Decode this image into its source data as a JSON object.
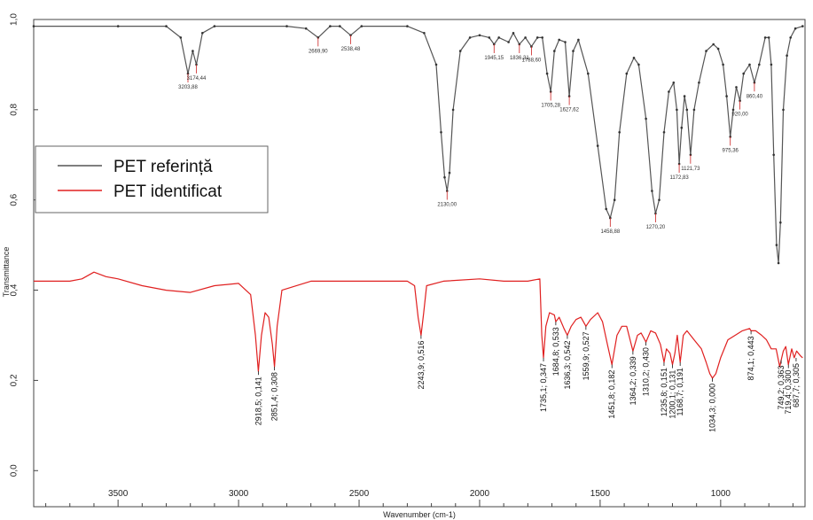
{
  "chart_data": {
    "type": "line",
    "xlabel": "Wavenumber (cm-1)",
    "ylabel": "Transmittance",
    "xlim": [
      3850,
      650
    ],
    "ylim": [
      -0.08,
      1.0
    ],
    "x_ticks": [
      3500,
      3000,
      2500,
      2000,
      1500,
      1000
    ],
    "y_ticks": [
      "0,0",
      "0,2",
      "0,4",
      "0,6",
      "0,8",
      "1,0"
    ],
    "y_tick_values": [
      0.0,
      0.2,
      0.4,
      0.6,
      0.8,
      1.0
    ],
    "legend": {
      "position": "left",
      "entries": [
        "PET referință",
        "PET identificat"
      ]
    },
    "series": [
      {
        "name": "PET referință",
        "color": "#555555",
        "points": [
          [
            3850,
            0.985
          ],
          [
            3500,
            0.985
          ],
          [
            3300,
            0.985
          ],
          [
            3240,
            0.96
          ],
          [
            3210,
            0.88
          ],
          [
            3190,
            0.93
          ],
          [
            3175,
            0.9
          ],
          [
            3150,
            0.97
          ],
          [
            3100,
            0.985
          ],
          [
            2800,
            0.985
          ],
          [
            2720,
            0.98
          ],
          [
            2670,
            0.96
          ],
          [
            2620,
            0.985
          ],
          [
            2580,
            0.985
          ],
          [
            2535,
            0.965
          ],
          [
            2490,
            0.985
          ],
          [
            2300,
            0.985
          ],
          [
            2230,
            0.97
          ],
          [
            2180,
            0.9
          ],
          [
            2160,
            0.75
          ],
          [
            2145,
            0.65
          ],
          [
            2135,
            0.62
          ],
          [
            2125,
            0.66
          ],
          [
            2110,
            0.8
          ],
          [
            2080,
            0.93
          ],
          [
            2040,
            0.96
          ],
          [
            2000,
            0.965
          ],
          [
            1960,
            0.96
          ],
          [
            1940,
            0.945
          ],
          [
            1920,
            0.96
          ],
          [
            1880,
            0.95
          ],
          [
            1860,
            0.97
          ],
          [
            1835,
            0.945
          ],
          [
            1810,
            0.96
          ],
          [
            1785,
            0.94
          ],
          [
            1760,
            0.96
          ],
          [
            1740,
            0.96
          ],
          [
            1720,
            0.88
          ],
          [
            1705,
            0.84
          ],
          [
            1690,
            0.93
          ],
          [
            1670,
            0.955
          ],
          [
            1645,
            0.95
          ],
          [
            1628,
            0.83
          ],
          [
            1612,
            0.93
          ],
          [
            1590,
            0.955
          ],
          [
            1550,
            0.88
          ],
          [
            1510,
            0.72
          ],
          [
            1475,
            0.58
          ],
          [
            1458,
            0.56
          ],
          [
            1440,
            0.6
          ],
          [
            1420,
            0.75
          ],
          [
            1390,
            0.88
          ],
          [
            1360,
            0.915
          ],
          [
            1340,
            0.9
          ],
          [
            1310,
            0.78
          ],
          [
            1285,
            0.62
          ],
          [
            1270,
            0.57
          ],
          [
            1255,
            0.6
          ],
          [
            1235,
            0.75
          ],
          [
            1215,
            0.84
          ],
          [
            1195,
            0.86
          ],
          [
            1182,
            0.8
          ],
          [
            1172,
            0.68
          ],
          [
            1162,
            0.76
          ],
          [
            1150,
            0.83
          ],
          [
            1140,
            0.8
          ],
          [
            1125,
            0.7
          ],
          [
            1110,
            0.8
          ],
          [
            1090,
            0.86
          ],
          [
            1060,
            0.93
          ],
          [
            1030,
            0.945
          ],
          [
            1010,
            0.935
          ],
          [
            990,
            0.9
          ],
          [
            975,
            0.83
          ],
          [
            960,
            0.74
          ],
          [
            948,
            0.8
          ],
          [
            935,
            0.85
          ],
          [
            920,
            0.82
          ],
          [
            905,
            0.88
          ],
          [
            880,
            0.9
          ],
          [
            860,
            0.86
          ],
          [
            840,
            0.9
          ],
          [
            815,
            0.96
          ],
          [
            800,
            0.96
          ],
          [
            790,
            0.9
          ],
          [
            780,
            0.7
          ],
          [
            768,
            0.5
          ],
          [
            760,
            0.46
          ],
          [
            752,
            0.55
          ],
          [
            740,
            0.8
          ],
          [
            725,
            0.92
          ],
          [
            710,
            0.96
          ],
          [
            690,
            0.98
          ],
          [
            660,
            0.985
          ]
        ]
      },
      {
        "name": "PET identificat",
        "color": "#e02020",
        "points": [
          [
            3850,
            0.42
          ],
          [
            3700,
            0.42
          ],
          [
            3650,
            0.425
          ],
          [
            3600,
            0.44
          ],
          [
            3550,
            0.43
          ],
          [
            3500,
            0.425
          ],
          [
            3400,
            0.41
          ],
          [
            3300,
            0.4
          ],
          [
            3200,
            0.395
          ],
          [
            3100,
            0.41
          ],
          [
            3000,
            0.415
          ],
          [
            2950,
            0.39
          ],
          [
            2930,
            0.3
          ],
          [
            2918,
            0.22
          ],
          [
            2905,
            0.3
          ],
          [
            2890,
            0.35
          ],
          [
            2875,
            0.34
          ],
          [
            2860,
            0.28
          ],
          [
            2851,
            0.23
          ],
          [
            2840,
            0.32
          ],
          [
            2820,
            0.4
          ],
          [
            2700,
            0.42
          ],
          [
            2500,
            0.42
          ],
          [
            2300,
            0.42
          ],
          [
            2270,
            0.41
          ],
          [
            2255,
            0.34
          ],
          [
            2243,
            0.3
          ],
          [
            2232,
            0.35
          ],
          [
            2220,
            0.41
          ],
          [
            2150,
            0.42
          ],
          [
            2000,
            0.425
          ],
          [
            1900,
            0.42
          ],
          [
            1800,
            0.42
          ],
          [
            1750,
            0.425
          ],
          [
            1742,
            0.3
          ],
          [
            1735,
            0.25
          ],
          [
            1725,
            0.32
          ],
          [
            1710,
            0.35
          ],
          [
            1690,
            0.345
          ],
          [
            1684,
            0.33
          ],
          [
            1670,
            0.34
          ],
          [
            1650,
            0.315
          ],
          [
            1636,
            0.3
          ],
          [
            1620,
            0.32
          ],
          [
            1600,
            0.335
          ],
          [
            1580,
            0.34
          ],
          [
            1559,
            0.32
          ],
          [
            1540,
            0.335
          ],
          [
            1510,
            0.35
          ],
          [
            1490,
            0.33
          ],
          [
            1470,
            0.28
          ],
          [
            1451,
            0.235
          ],
          [
            1430,
            0.3
          ],
          [
            1410,
            0.32
          ],
          [
            1390,
            0.32
          ],
          [
            1364,
            0.265
          ],
          [
            1345,
            0.3
          ],
          [
            1330,
            0.305
          ],
          [
            1310,
            0.285
          ],
          [
            1290,
            0.31
          ],
          [
            1270,
            0.305
          ],
          [
            1250,
            0.28
          ],
          [
            1235,
            0.24
          ],
          [
            1225,
            0.27
          ],
          [
            1210,
            0.26
          ],
          [
            1200,
            0.235
          ],
          [
            1190,
            0.26
          ],
          [
            1180,
            0.3
          ],
          [
            1168,
            0.24
          ],
          [
            1155,
            0.3
          ],
          [
            1140,
            0.31
          ],
          [
            1110,
            0.29
          ],
          [
            1080,
            0.27
          ],
          [
            1060,
            0.24
          ],
          [
            1045,
            0.215
          ],
          [
            1034,
            0.205
          ],
          [
            1020,
            0.215
          ],
          [
            1000,
            0.25
          ],
          [
            970,
            0.29
          ],
          [
            940,
            0.3
          ],
          [
            910,
            0.31
          ],
          [
            880,
            0.315
          ],
          [
            874,
            0.31
          ],
          [
            855,
            0.31
          ],
          [
            830,
            0.3
          ],
          [
            810,
            0.29
          ],
          [
            790,
            0.27
          ],
          [
            770,
            0.27
          ],
          [
            755,
            0.23
          ],
          [
            749,
            0.245
          ],
          [
            740,
            0.265
          ],
          [
            730,
            0.275
          ],
          [
            719,
            0.235
          ],
          [
            705,
            0.27
          ],
          [
            695,
            0.25
          ],
          [
            685,
            0.265
          ],
          [
            670,
            0.255
          ],
          [
            660,
            0.25
          ]
        ]
      }
    ],
    "annotations_red": [
      {
        "x": 2918,
        "y": 0.22,
        "text": "2918,5; 0,141"
      },
      {
        "x": 2851,
        "y": 0.23,
        "text": "2851,4; 0,308"
      },
      {
        "x": 2243,
        "y": 0.3,
        "text": "2243,9; 0,516"
      },
      {
        "x": 1735,
        "y": 0.25,
        "text": "1735,1; 0,347"
      },
      {
        "x": 1684,
        "y": 0.33,
        "text": "1684,8; 0,533"
      },
      {
        "x": 1636,
        "y": 0.3,
        "text": "1636,3; 0,542"
      },
      {
        "x": 1559,
        "y": 0.32,
        "text": "1559,9; 0,527"
      },
      {
        "x": 1451,
        "y": 0.235,
        "text": "1451,8; 0,182"
      },
      {
        "x": 1364,
        "y": 0.265,
        "text": "1364,2; 0,339"
      },
      {
        "x": 1310,
        "y": 0.285,
        "text": "1310,2; 0,430"
      },
      {
        "x": 1235,
        "y": 0.24,
        "text": "1235,8; 0,151"
      },
      {
        "x": 1200,
        "y": 0.235,
        "text": "1200,1; 0,131"
      },
      {
        "x": 1168,
        "y": 0.24,
        "text": "1168,7; 0,191"
      },
      {
        "x": 1034,
        "y": 0.205,
        "text": "1034,3; 0,000"
      },
      {
        "x": 874,
        "y": 0.31,
        "text": "874,1; 0,443"
      },
      {
        "x": 749,
        "y": 0.245,
        "text": "749,2; 0,363"
      },
      {
        "x": 719,
        "y": 0.235,
        "text": "719,4; 0,300"
      },
      {
        "x": 687,
        "y": 0.25,
        "text": "687,7; 0,305"
      }
    ],
    "annotations_black": [
      {
        "x": 3210,
        "y": 0.88,
        "text": "3203,88"
      },
      {
        "x": 3175,
        "y": 0.9,
        "text": "3174,44"
      },
      {
        "x": 2670,
        "y": 0.96,
        "text": "2669,90"
      },
      {
        "x": 2535,
        "y": 0.965,
        "text": "2538,48"
      },
      {
        "x": 2135,
        "y": 0.62,
        "text": "2130,00"
      },
      {
        "x": 1940,
        "y": 0.945,
        "text": "1945,15"
      },
      {
        "x": 1835,
        "y": 0.945,
        "text": "1836,31"
      },
      {
        "x": 1785,
        "y": 0.94,
        "text": "1788,60"
      },
      {
        "x": 1705,
        "y": 0.84,
        "text": "1705,28"
      },
      {
        "x": 1628,
        "y": 0.83,
        "text": "1627,62"
      },
      {
        "x": 1458,
        "y": 0.56,
        "text": "1458,88"
      },
      {
        "x": 1270,
        "y": 0.57,
        "text": "1270,20"
      },
      {
        "x": 1172,
        "y": 0.68,
        "text": "1172,83"
      },
      {
        "x": 1125,
        "y": 0.7,
        "text": "1121,73"
      },
      {
        "x": 960,
        "y": 0.74,
        "text": "975,36"
      },
      {
        "x": 920,
        "y": 0.82,
        "text": "920,00"
      },
      {
        "x": 860,
        "y": 0.86,
        "text": "860,40"
      }
    ]
  }
}
